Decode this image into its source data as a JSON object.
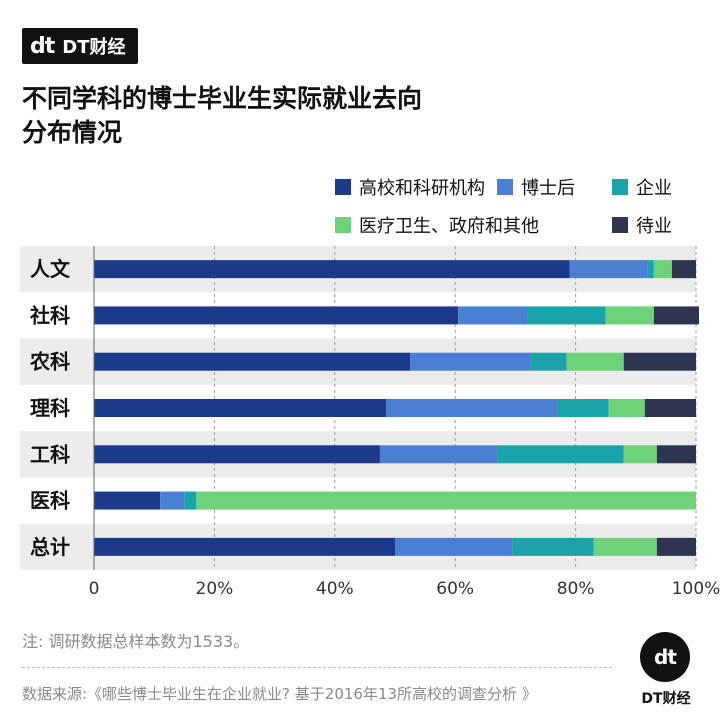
{
  "brand": {
    "mark": "dt",
    "name": "DT财经"
  },
  "title_lines": [
    "不同学科的博士毕业生实际就业去向",
    "分布情况"
  ],
  "note": "注: 调研数据总样本数为1533。",
  "source": "数据来源:《哪些博士毕业生在企业就业? 基于2016年13所高校的调查分析 》",
  "footer_brand": {
    "mark": "dt",
    "name": "DT财经"
  },
  "colors": {
    "高校和科研机构": "#1b3a8a",
    "博士后": "#4a7fd4",
    "企业": "#1aa3a8",
    "医疗卫生、政府和其他": "#6fd17a",
    "待业": "#2e3550"
  },
  "chart_data": {
    "type": "bar",
    "orientation": "horizontal",
    "stacked": true,
    "title": "不同学科的博士毕业生实际就业去向分布情况",
    "categories": [
      "人文",
      "社科",
      "农科",
      "理科",
      "工科",
      "医科",
      "总计"
    ],
    "series": [
      {
        "name": "高校和科研机构",
        "values": [
          79,
          60.5,
          52.5,
          48.5,
          47.5,
          11,
          50
        ]
      },
      {
        "name": "博士后",
        "values": [
          13,
          11.5,
          20,
          28.5,
          19.5,
          4,
          19.5
        ]
      },
      {
        "name": "企业",
        "values": [
          1,
          13,
          6,
          8.5,
          21,
          2,
          13.5
        ]
      },
      {
        "name": "医疗卫生、政府和其他",
        "values": [
          3,
          8,
          9.5,
          6,
          5.5,
          83,
          10.5
        ]
      },
      {
        "name": "待业",
        "values": [
          4,
          7.5,
          12,
          8.5,
          6.5,
          0,
          6.5
        ]
      }
    ],
    "xlim": [
      0,
      100
    ],
    "xticks": [
      "0",
      "20%",
      "40%",
      "60%",
      "80%",
      "100%"
    ],
    "grid": true,
    "legend_position": "top-right"
  }
}
